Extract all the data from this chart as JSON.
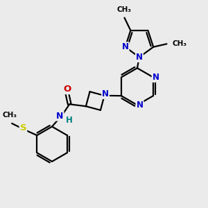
{
  "background_color": "#ebebeb",
  "bond_color": "#000000",
  "nitrogen_color": "#0000cc",
  "oxygen_color": "#cc0000",
  "sulfur_color": "#cccc00",
  "nh_color": "#008080",
  "line_width": 1.6,
  "figsize": [
    3.0,
    3.0
  ],
  "dpi": 100,
  "xlim": [
    0,
    10
  ],
  "ylim": [
    0,
    10
  ]
}
